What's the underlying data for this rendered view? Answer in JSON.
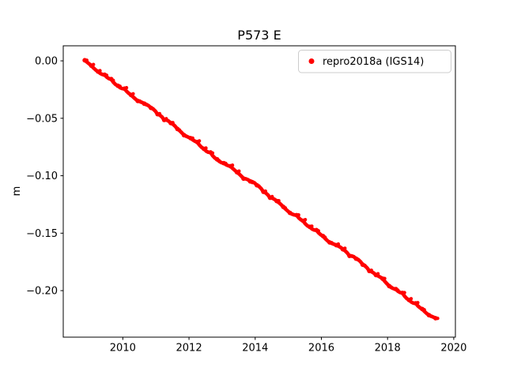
{
  "figure": {
    "title": "P573 E"
  },
  "colors": {
    "marker": "#ff0000",
    "text": "#000000",
    "spine": "#000000",
    "legend_border": "#cccccc",
    "background": "#ffffff"
  },
  "chart_data": {
    "type": "scatter",
    "title": "P573 E",
    "xlabel": "",
    "ylabel": "m",
    "xlim": [
      2008.2,
      2020.05
    ],
    "ylim": [
      -0.2405,
      0.0131
    ],
    "xticks": [
      2010,
      2012,
      2014,
      2016,
      2018,
      2020
    ],
    "yticks": [
      0.0,
      -0.05,
      -0.1,
      -0.15,
      -0.2
    ],
    "ytick_labels": [
      "0.00",
      "−0.05",
      "−0.10",
      "−0.15",
      "−0.20"
    ],
    "grid": false,
    "legend": {
      "position": "upper right",
      "entries": [
        "repro2018a (IGS14)"
      ]
    },
    "series": [
      {
        "name": "repro2018a (IGS14)",
        "color": "#ff0000",
        "marker": "circle",
        "x": [
          2008.85,
          2009.05,
          2009.25,
          2009.45,
          2009.65,
          2009.85,
          2010.05,
          2010.25,
          2010.45,
          2010.65,
          2010.85,
          2011.05,
          2011.25,
          2011.45,
          2011.65,
          2011.85,
          2012.05,
          2012.25,
          2012.45,
          2012.65,
          2012.85,
          2013.05,
          2013.25,
          2013.45,
          2013.65,
          2013.85,
          2014.05,
          2014.25,
          2014.45,
          2014.65,
          2014.85,
          2015.05,
          2015.25,
          2015.45,
          2015.65,
          2015.85,
          2016.05,
          2016.25,
          2016.45,
          2016.65,
          2016.85,
          2017.05,
          2017.25,
          2017.45,
          2017.65,
          2017.85,
          2018.05,
          2018.25,
          2018.45,
          2018.65,
          2018.85,
          2019.05,
          2019.25,
          2019.45
        ],
        "y": [
          0.0005,
          -0.0042,
          -0.0093,
          -0.0121,
          -0.0159,
          -0.0217,
          -0.0242,
          -0.0297,
          -0.0349,
          -0.0373,
          -0.0409,
          -0.0464,
          -0.0514,
          -0.0541,
          -0.0593,
          -0.0647,
          -0.0673,
          -0.0707,
          -0.0766,
          -0.0797,
          -0.0857,
          -0.089,
          -0.0917,
          -0.0969,
          -0.1025,
          -0.1049,
          -0.1083,
          -0.114,
          -0.1192,
          -0.122,
          -0.1271,
          -0.1323,
          -0.1343,
          -0.1393,
          -0.1445,
          -0.1473,
          -0.1525,
          -0.158,
          -0.1604,
          -0.164,
          -0.1698,
          -0.1722,
          -0.1774,
          -0.1829,
          -0.1864,
          -0.1896,
          -0.196,
          -0.1987,
          -0.202,
          -0.2081,
          -0.211,
          -0.216,
          -0.2213,
          -0.224
        ]
      }
    ]
  }
}
